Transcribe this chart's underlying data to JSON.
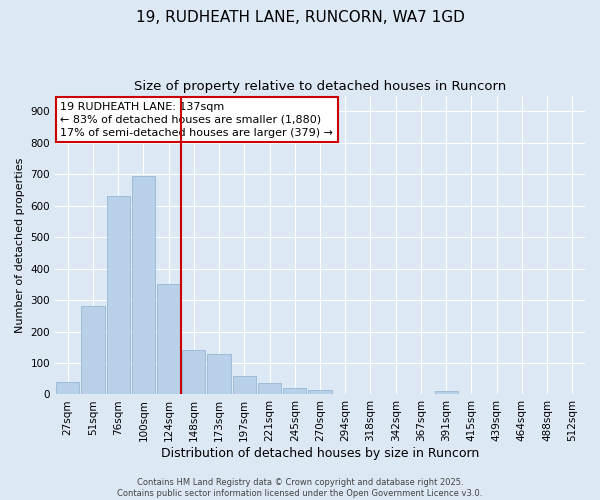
{
  "title": "19, RUDHEATH LANE, RUNCORN, WA7 1GD",
  "subtitle": "Size of property relative to detached houses in Runcorn",
  "xlabel": "Distribution of detached houses by size in Runcorn",
  "ylabel": "Number of detached properties",
  "footer_line1": "Contains HM Land Registry data © Crown copyright and database right 2025.",
  "footer_line2": "Contains public sector information licensed under the Open Government Licence v3.0.",
  "bin_labels": [
    "27sqm",
    "51sqm",
    "76sqm",
    "100sqm",
    "124sqm",
    "148sqm",
    "173sqm",
    "197sqm",
    "221sqm",
    "245sqm",
    "270sqm",
    "294sqm",
    "318sqm",
    "342sqm",
    "367sqm",
    "391sqm",
    "415sqm",
    "439sqm",
    "464sqm",
    "488sqm",
    "512sqm"
  ],
  "bar_values": [
    40,
    280,
    630,
    695,
    350,
    140,
    130,
    60,
    35,
    20,
    15,
    0,
    0,
    0,
    0,
    10,
    0,
    0,
    0,
    0,
    0
  ],
  "bar_color": "#b8d0e8",
  "bar_edgecolor": "#8ab0d0",
  "vline_color": "#cc0000",
  "annotation_line1": "19 RUDHEATH LANE: 137sqm",
  "annotation_line2": "← 83% of detached houses are smaller (1,880)",
  "annotation_line3": "17% of semi-detached houses are larger (379) →",
  "annotation_box_facecolor": "#ffffff",
  "annotation_box_edgecolor": "#cc0000",
  "ylim": [
    0,
    950
  ],
  "yticks": [
    0,
    100,
    200,
    300,
    400,
    500,
    600,
    700,
    800,
    900
  ],
  "background_color": "#dce8f4",
  "plot_background_color": "#dce8f4",
  "grid_color": "#ffffff",
  "title_fontsize": 11,
  "subtitle_fontsize": 9.5,
  "annotation_fontsize": 8,
  "ylabel_fontsize": 8,
  "xlabel_fontsize": 9,
  "tick_fontsize": 7.5,
  "footer_fontsize": 6
}
